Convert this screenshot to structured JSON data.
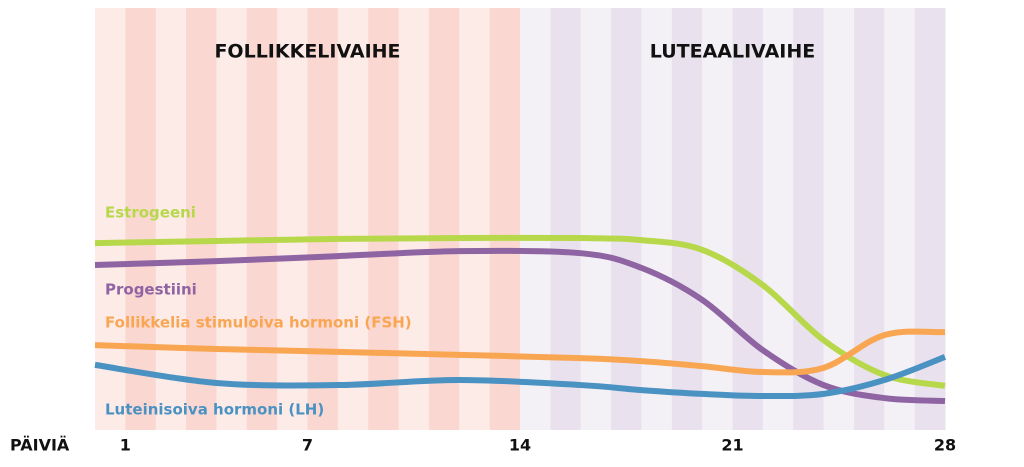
{
  "chart_data": {
    "type": "line",
    "x_label": "PÄIVIÄ",
    "phases": [
      {
        "label": "FOLLIKKELIVAIHE",
        "start": 0,
        "end": 14,
        "colors": [
          "#fdebe8",
          "#fbd7d1"
        ]
      },
      {
        "label": "LUTEAALIVAIHE",
        "start": 14,
        "end": 28,
        "colors": [
          "#f4f1f6",
          "#e9e1ee"
        ]
      }
    ],
    "x": [
      0,
      4,
      8,
      12,
      16,
      18,
      20,
      22,
      24,
      26,
      28
    ],
    "xlim": [
      0,
      28
    ],
    "xticks": [
      1,
      7,
      14,
      21,
      28
    ],
    "ylim": [
      0,
      100
    ],
    "series": [
      {
        "name": "Estrogeeni",
        "color": "#b8d84c",
        "values": [
          44.5,
          45.0,
          45.5,
          45.7,
          45.7,
          45.2,
          42.9,
          34.5,
          21.4,
          13.1,
          10.5
        ]
      },
      {
        "name": "Progestiini",
        "color": "#8f64a2",
        "values": [
          39.3,
          40.2,
          41.4,
          42.6,
          42.1,
          38.6,
          31.0,
          19.0,
          10.7,
          7.6,
          6.9
        ]
      },
      {
        "name": "Follikkelia stimuloiva hormoni (FSH)",
        "color": "#f9a653",
        "values": [
          20.2,
          19.3,
          18.6,
          17.9,
          17.1,
          16.4,
          15.2,
          13.8,
          14.8,
          22.6,
          23.3
        ]
      },
      {
        "name": "Luteinisoiva hormoni (LH)",
        "color": "#4a92c2",
        "values": [
          15.5,
          11.2,
          10.7,
          11.9,
          10.7,
          9.5,
          8.6,
          8.1,
          8.6,
          11.9,
          17.4
        ]
      }
    ]
  }
}
